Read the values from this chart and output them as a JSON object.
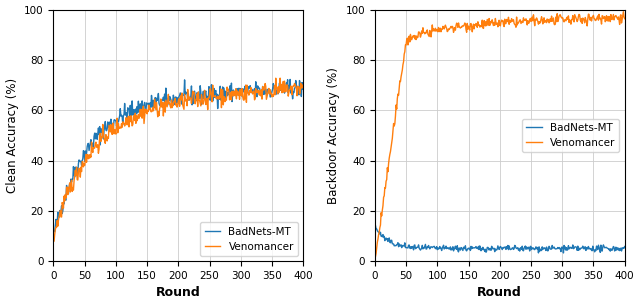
{
  "left_ylabel": "Clean Accuracy (%)",
  "right_ylabel": "Backdoor Accuracy (%)",
  "xlabel": "Round",
  "xlim": [
    0,
    400
  ],
  "left_ylim": [
    0,
    100
  ],
  "right_ylim": [
    0,
    100
  ],
  "xticks": [
    0,
    50,
    100,
    150,
    200,
    250,
    300,
    350,
    400
  ],
  "left_yticks": [
    0,
    20,
    40,
    60,
    80,
    100
  ],
  "right_yticks": [
    0,
    20,
    40,
    60,
    80,
    100
  ],
  "badnets_color": "#1f77b4",
  "venomancer_color": "#ff7f0e",
  "legend_labels": [
    "BadNets-MT",
    "Venomancer"
  ],
  "linewidth": 1.0,
  "seed": 42
}
